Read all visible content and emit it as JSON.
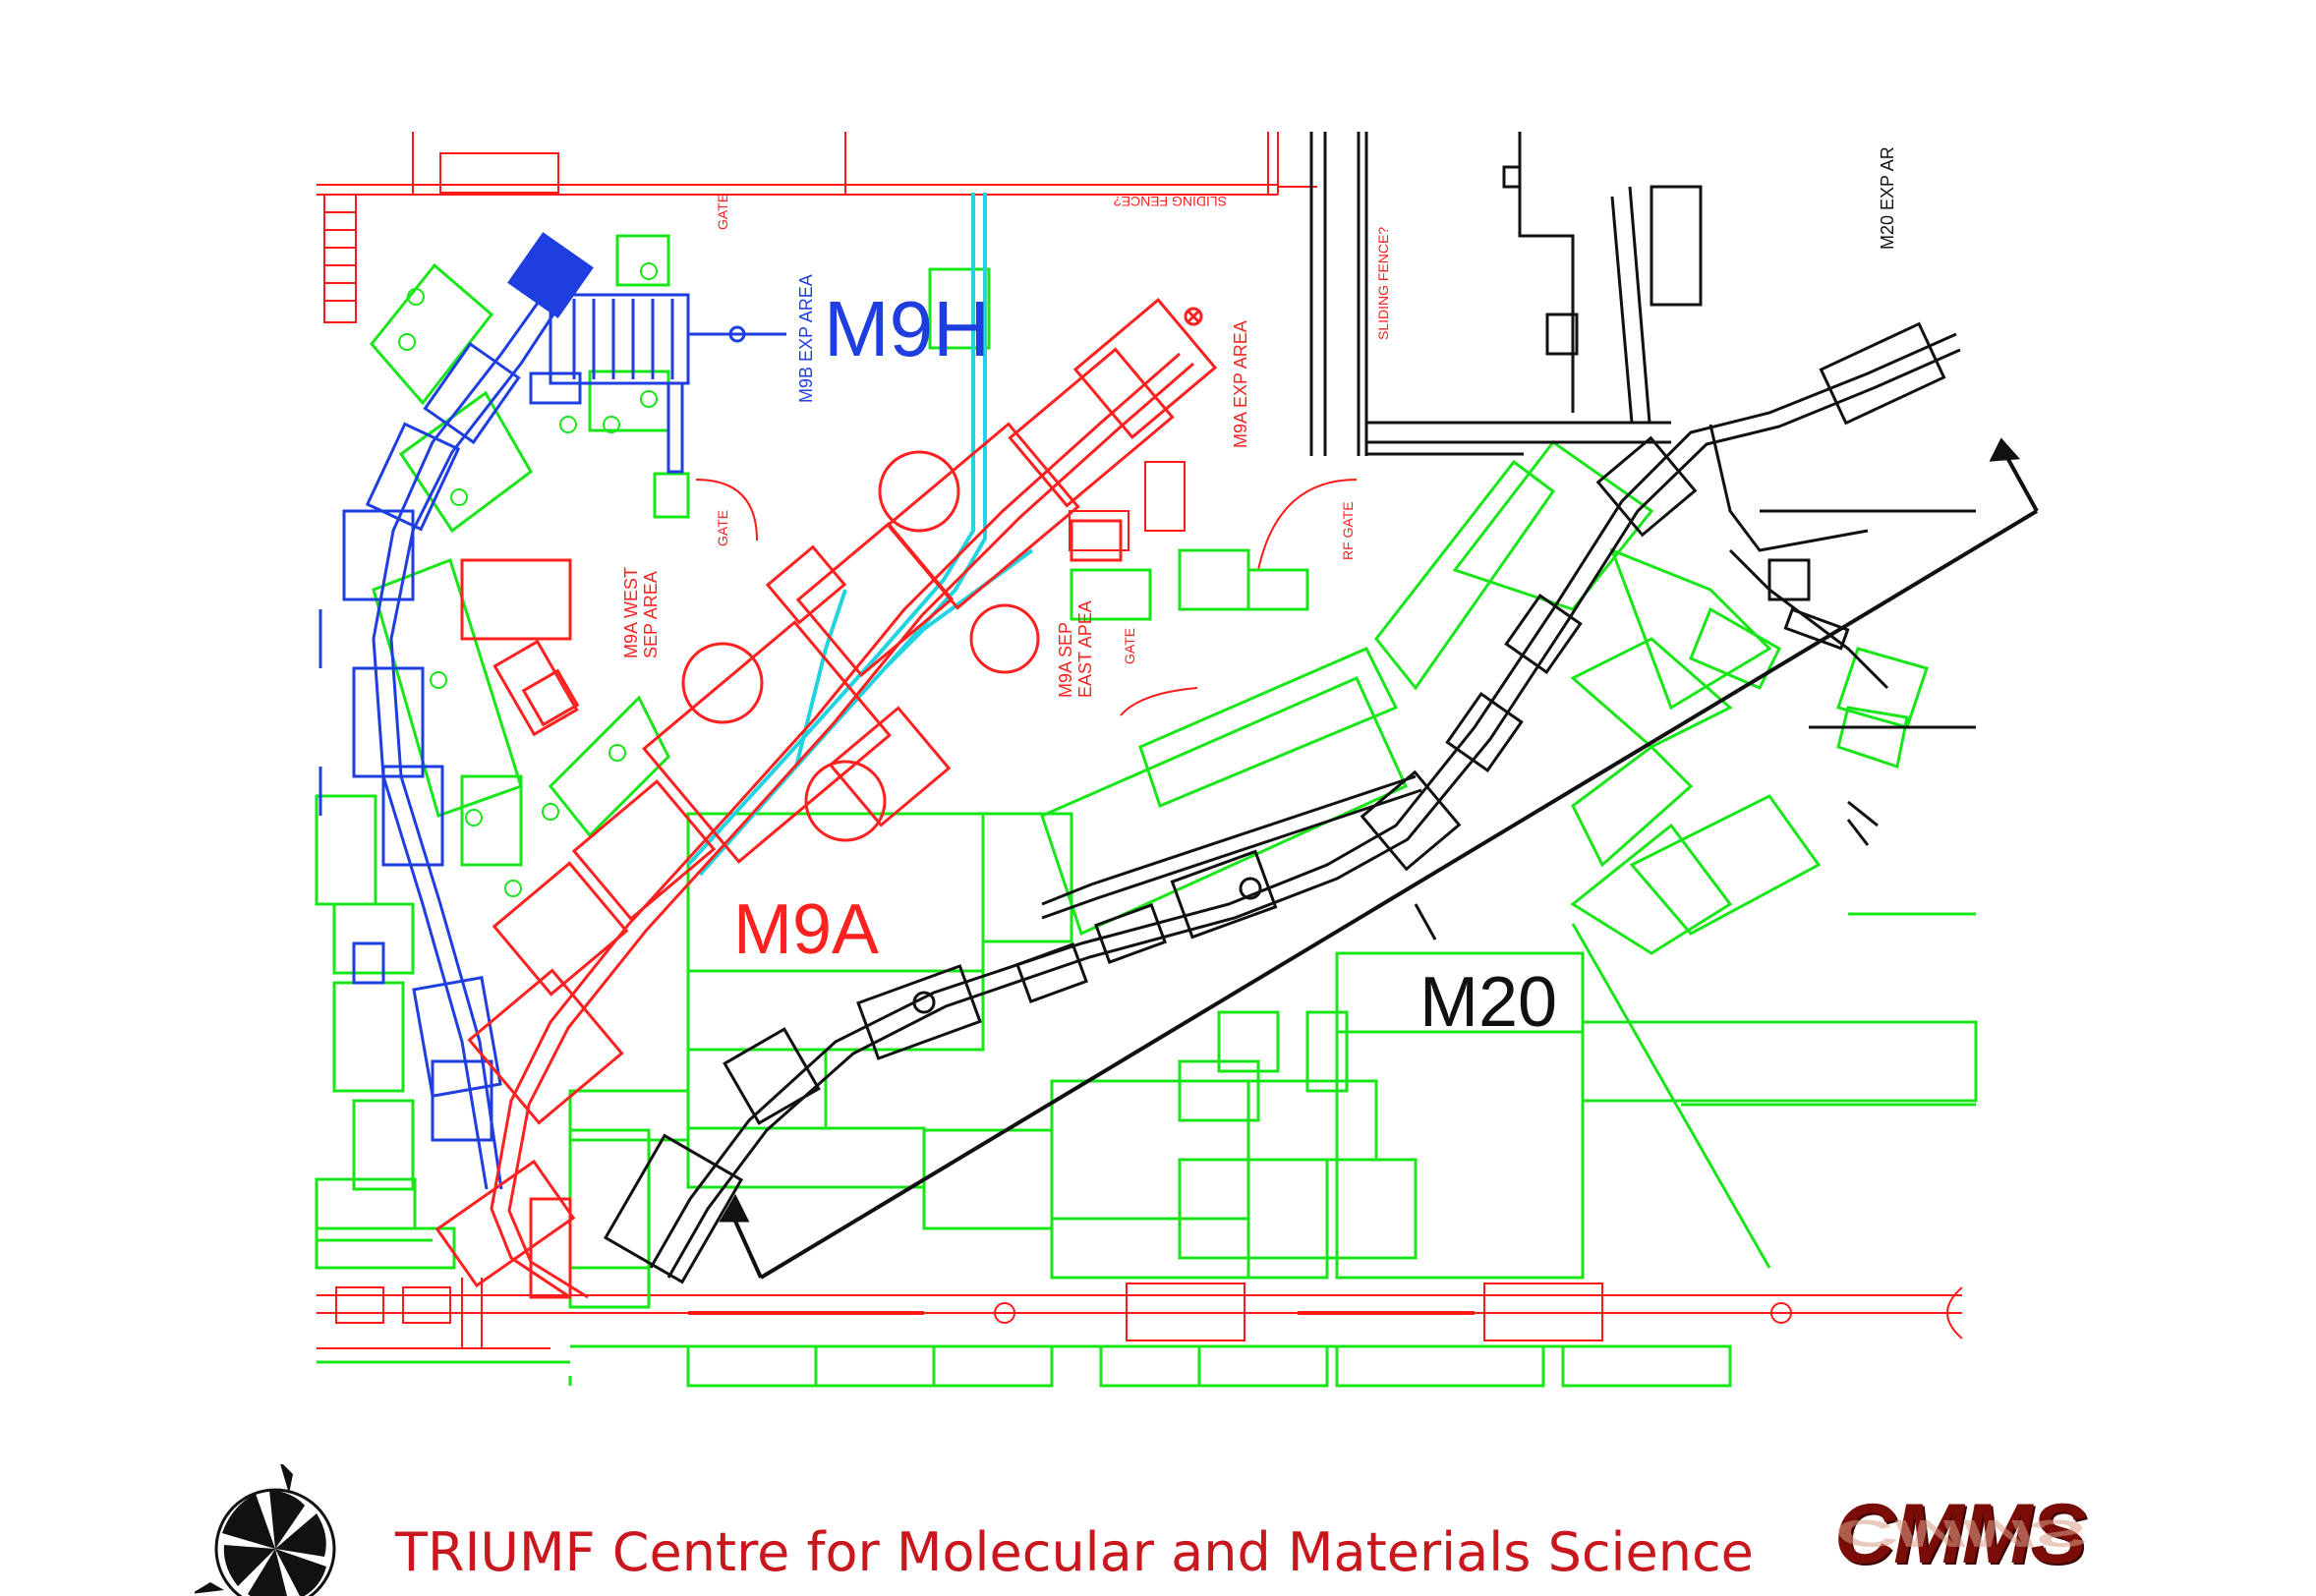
{
  "labels": {
    "m9h": "M9H",
    "m9a": "M9A",
    "m20": "M20",
    "m9b_exp_area": "M9B EXP AREA",
    "m9a_exp_area": "M9A EXP AREA",
    "m9a_west_sep_line1": "M9A WEST",
    "m9a_west_sep_line2": "SEP AREA",
    "m9a_sep_east_line1": "M9A SEP",
    "m9a_sep_east_line2": "EAST APEA",
    "m20_exp_area": "M20 EXP AR",
    "gate_top": "GATE",
    "gate_mid": "GATE",
    "gate_east": "GATE",
    "rf_gate": "RF GATE",
    "sliding_fence_top": "SLIDING FENCE?",
    "sliding_fence_side": "SLIDING FENCE?"
  },
  "footer": {
    "title": "TRIUMF Centre for Molecular and Materials Science",
    "cmms": "CMMS"
  },
  "colors": {
    "building": "#ff1a1a",
    "m9a": "#ff2020",
    "m9h": "#1f3ee0",
    "m9_line": "#22d3e0",
    "areas": "#19e619",
    "m20": "#111111",
    "footer": "#c8171d"
  }
}
